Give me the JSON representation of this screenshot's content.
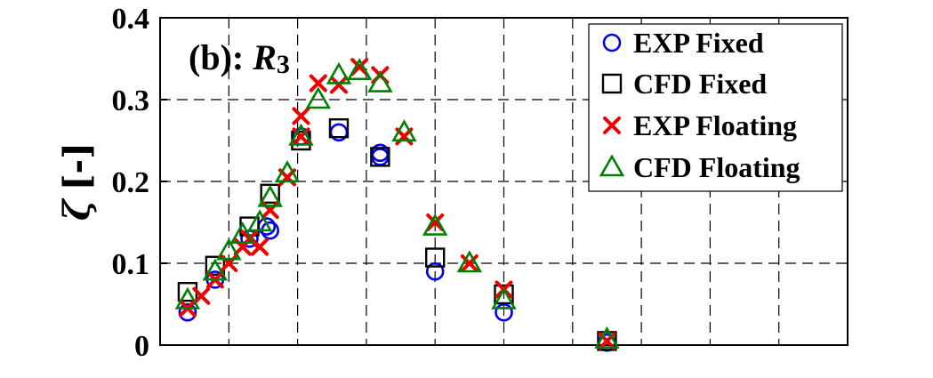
{
  "chart_data": {
    "type": "scatter",
    "panel_label": "(b): ",
    "panel_symbol": "R",
    "panel_subscript": "3",
    "ylabel_symbol": "ζ",
    "ylabel_unit": "[-]",
    "ylim": [
      0,
      0.4
    ],
    "yticks": [
      0,
      0.1,
      0.2,
      0.3,
      0.4
    ],
    "ytick_labels": [
      "0",
      "0.1",
      "0.2",
      "0.3",
      "0.4"
    ],
    "xlim": [
      0,
      10
    ],
    "xgrid": [
      1,
      2,
      3,
      4,
      5,
      6,
      7,
      8,
      9
    ],
    "xtick_labels": [],
    "grid": true,
    "legend_position": "top-right",
    "series": [
      {
        "name": "EXP Fixed",
        "marker": "circle",
        "color": "#0000ee",
        "points": [
          [
            0.4,
            0.04
          ],
          [
            0.8,
            0.08
          ],
          [
            1.3,
            0.13
          ],
          [
            1.55,
            0.145
          ],
          [
            1.6,
            0.14
          ],
          [
            2.05,
            0.255
          ],
          [
            2.6,
            0.26
          ],
          [
            3.2,
            0.235
          ],
          [
            3.2,
            0.23
          ],
          [
            4,
            0.09
          ],
          [
            5,
            0.04
          ],
          [
            6.5,
            0.003
          ]
        ]
      },
      {
        "name": "CFD Fixed",
        "marker": "square",
        "color": "#000000",
        "points": [
          [
            0.4,
            0.065
          ],
          [
            0.8,
            0.097
          ],
          [
            1.3,
            0.145
          ],
          [
            1.6,
            0.185
          ],
          [
            2.05,
            0.25
          ],
          [
            2.6,
            0.265
          ],
          [
            3.2,
            0.23
          ],
          [
            4,
            0.107
          ],
          [
            5,
            0.062
          ],
          [
            6.5,
            0.005
          ]
        ]
      },
      {
        "name": "EXP Floating",
        "marker": "x",
        "color": "#ee0000",
        "points": [
          [
            0.4,
            0.045
          ],
          [
            0.6,
            0.06
          ],
          [
            0.8,
            0.08
          ],
          [
            1,
            0.1
          ],
          [
            1.2,
            0.12
          ],
          [
            1.3,
            0.13
          ],
          [
            1.45,
            0.12
          ],
          [
            1.6,
            0.165
          ],
          [
            1.85,
            0.205
          ],
          [
            2.05,
            0.28
          ],
          [
            2.05,
            0.255
          ],
          [
            2.3,
            0.32
          ],
          [
            2.6,
            0.318
          ],
          [
            2.9,
            0.34
          ],
          [
            3.2,
            0.33
          ],
          [
            3.55,
            0.255
          ],
          [
            4,
            0.15
          ],
          [
            4.5,
            0.1
          ],
          [
            5,
            0.068
          ],
          [
            6.5,
            0.005
          ]
        ]
      },
      {
        "name": "CFD Floating",
        "marker": "triangle",
        "color": "#008000",
        "points": [
          [
            0.4,
            0.055
          ],
          [
            0.8,
            0.09
          ],
          [
            1,
            0.115
          ],
          [
            1.2,
            0.135
          ],
          [
            1.45,
            0.15
          ],
          [
            1.6,
            0.18
          ],
          [
            1.85,
            0.21
          ],
          [
            2.05,
            0.255
          ],
          [
            2.3,
            0.3
          ],
          [
            2.6,
            0.33
          ],
          [
            2.9,
            0.335
          ],
          [
            3.2,
            0.32
          ],
          [
            3.55,
            0.26
          ],
          [
            4,
            0.145
          ],
          [
            4.5,
            0.1
          ],
          [
            5,
            0.055
          ],
          [
            6.5,
            0.007
          ]
        ]
      }
    ]
  }
}
